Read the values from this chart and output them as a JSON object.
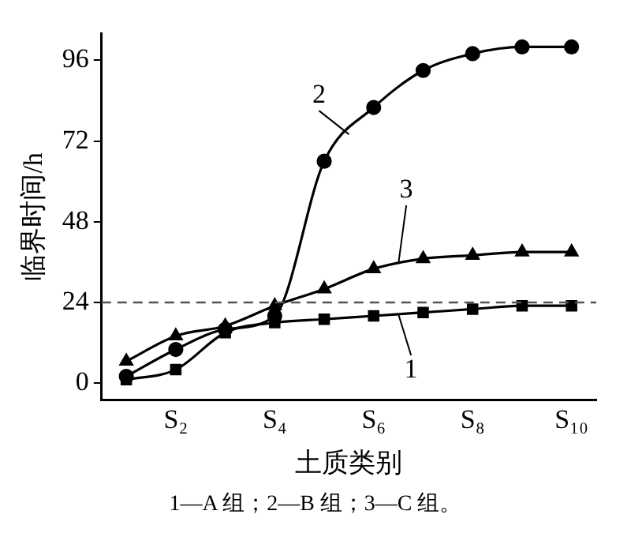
{
  "chart_data": {
    "type": "line",
    "xlabel": "土质类别",
    "ylabel": "临界时间/h",
    "categories": [
      null,
      "S₂",
      null,
      "S₄",
      null,
      "S₆",
      null,
      "S₈",
      null,
      "S₁₀"
    ],
    "ylim": [
      -5,
      104
    ],
    "yticks": [
      0,
      24,
      48,
      72,
      96
    ],
    "grid": false,
    "line_style": "solid",
    "series": [
      {
        "name": "1",
        "color": "#000000",
        "marker": "square",
        "values": [
          1,
          4,
          15,
          18,
          19,
          20,
          21,
          22,
          23,
          23
        ]
      },
      {
        "name": "2",
        "color": "#000000",
        "marker": "circle",
        "values": [
          2,
          10,
          16,
          20,
          66,
          82,
          93,
          98,
          100,
          100
        ]
      },
      {
        "name": "3",
        "color": "#000000",
        "marker": "triangle",
        "values": [
          6.5,
          14,
          17,
          23,
          28,
          34,
          37,
          38,
          39,
          39
        ]
      }
    ],
    "ref_lines": [
      {
        "axis": "y",
        "value": 24,
        "color": "#555555",
        "line_style": "dashed"
      }
    ],
    "annotations": [
      "1—A 组；2—B 组；3—C 组。"
    ]
  }
}
